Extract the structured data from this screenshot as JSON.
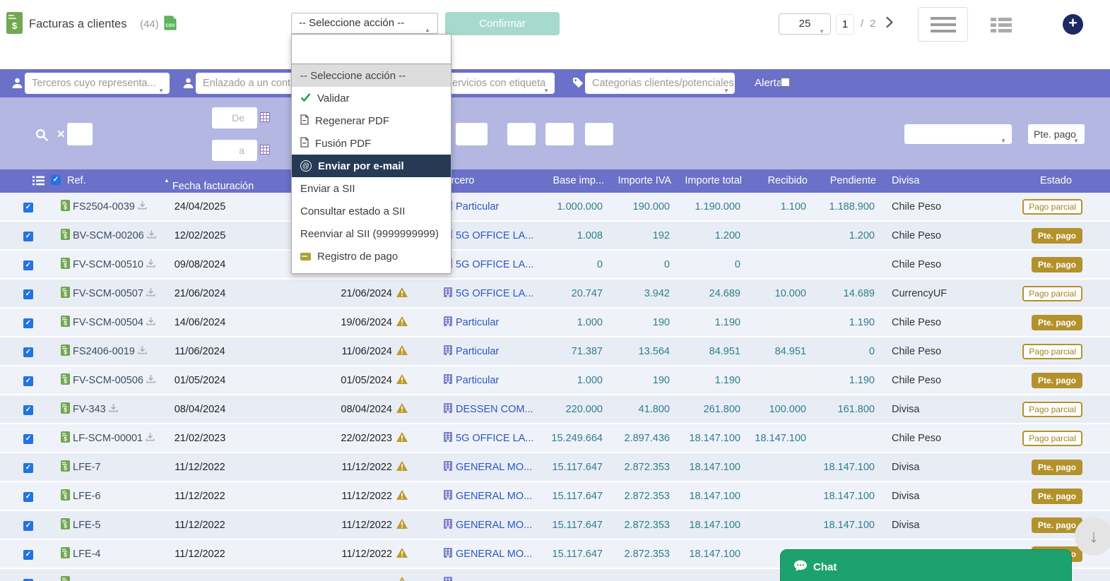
{
  "topbar": {
    "title": "Facturas a clientes",
    "count": "(44)",
    "action_select_value": "-- Seleccione acción --",
    "confirm_label": "Confirmar",
    "page_size": "25",
    "page_current": "1",
    "page_sep": "/",
    "page_total": "2"
  },
  "action_menu": {
    "items": [
      {
        "label": "-- Seleccione acción --",
        "icon": "none",
        "state": "selected"
      },
      {
        "label": "Validar",
        "icon": "check",
        "state": "normal"
      },
      {
        "label": "Regenerar PDF",
        "icon": "pdf",
        "state": "normal"
      },
      {
        "label": "Fusión PDF",
        "icon": "pdf",
        "state": "normal"
      },
      {
        "label": "Enviar por e-mail",
        "icon": "at",
        "state": "highlighted"
      },
      {
        "label": "Enviar a SII",
        "icon": "none",
        "state": "normal"
      },
      {
        "label": "Consultar estado a SII",
        "icon": "none",
        "state": "normal"
      },
      {
        "label": "Reenviar al SII (9999999999)",
        "icon": "none",
        "state": "normal"
      },
      {
        "label": "Registro de pago",
        "icon": "payment",
        "state": "normal"
      }
    ]
  },
  "filterbar": {
    "filters": [
      {
        "icon": "user",
        "placeholder": "Terceros cuyo representa..."
      },
      {
        "icon": "user",
        "placeholder": "Enlazado a un conta"
      },
      {
        "icon": "none",
        "placeholder": "ervicios con etiqueta"
      },
      {
        "icon": "tag",
        "placeholder": "Categorias clientes/potenciales"
      }
    ],
    "alert_label": "Alerta",
    "alert_checked": false
  },
  "searchbar": {
    "date_from_placeholder": "De",
    "date_to_placeholder": "a",
    "status_select_value": "Pte. pago"
  },
  "table": {
    "columns": {
      "ref": "Ref.",
      "date1": "Fecha facturación",
      "tercero": "Tercero",
      "base": "Base imp...",
      "iva": "Importe IVA",
      "total": "Importe total",
      "recibido": "Recibido",
      "pendiente": "Pendiente",
      "divisa": "Divisa",
      "estado": "Estado"
    },
    "rows": [
      {
        "ref": "FS2504-0039",
        "ref_icon": true,
        "dl": true,
        "date1": "24/04/2025",
        "date2": "",
        "warn": false,
        "building": true,
        "tercero": "Particular",
        "base": "1.000.000",
        "iva": "190.000",
        "total": "1.190.000",
        "recibido": "1.100",
        "pendiente": "1.188.900",
        "divisa": "Chile Peso",
        "estado": "Pago parcial",
        "estado_style": "outline"
      },
      {
        "ref": "BV-SCM-00206",
        "ref_icon": true,
        "dl": true,
        "date1": "12/02/2025",
        "date2": "",
        "warn": false,
        "building": true,
        "tercero": "5G OFFICE LA...",
        "base": "1.008",
        "iva": "192",
        "total": "1.200",
        "recibido": "",
        "pendiente": "1.200",
        "divisa": "Chile Peso",
        "estado": "Pte. pago",
        "estado_style": "solid"
      },
      {
        "ref": "FV-SCM-00510",
        "ref_icon": true,
        "dl": true,
        "date1": "09/08/2024",
        "date2": "",
        "warn": false,
        "building": true,
        "tercero": "5G OFFICE LA...",
        "base": "0",
        "iva": "0",
        "total": "0",
        "recibido": "",
        "pendiente": "",
        "divisa": "Chile Peso",
        "estado": "Pte. pago",
        "estado_style": "solid"
      },
      {
        "ref": "FV-SCM-00507",
        "ref_icon": true,
        "dl": true,
        "date1": "21/06/2024",
        "date2": "21/06/2024",
        "warn": true,
        "building": true,
        "tercero": "5G OFFICE LA...",
        "base": "20.747",
        "iva": "3.942",
        "total": "24.689",
        "recibido": "10.000",
        "pendiente": "14.689",
        "divisa": "CurrencyUF",
        "estado": "Pago parcial",
        "estado_style": "outline"
      },
      {
        "ref": "FV-SCM-00504",
        "ref_icon": true,
        "dl": true,
        "date1": "14/06/2024",
        "date2": "19/06/2024",
        "warn": true,
        "building": true,
        "tercero": "Particular",
        "base": "1.000",
        "iva": "190",
        "total": "1.190",
        "recibido": "",
        "pendiente": "1.190",
        "divisa": "Chile Peso",
        "estado": "Pte. pago",
        "estado_style": "solid"
      },
      {
        "ref": "FS2406-0019",
        "ref_icon": true,
        "dl": true,
        "date1": "11/06/2024",
        "date2": "11/06/2024",
        "warn": true,
        "building": true,
        "tercero": "Particular",
        "base": "71.387",
        "iva": "13.564",
        "total": "84.951",
        "recibido": "84.951",
        "pendiente": "0",
        "divisa": "Chile Peso",
        "estado": "Pago parcial",
        "estado_style": "outline"
      },
      {
        "ref": "FV-SCM-00506",
        "ref_icon": true,
        "dl": true,
        "date1": "01/05/2024",
        "date2": "01/05/2024",
        "warn": true,
        "building": true,
        "tercero": "Particular",
        "base": "1.000",
        "iva": "190",
        "total": "1.190",
        "recibido": "",
        "pendiente": "1.190",
        "divisa": "Chile Peso",
        "estado": "Pte. pago",
        "estado_style": "solid"
      },
      {
        "ref": "FV-343",
        "ref_icon": true,
        "dl": true,
        "date1": "08/04/2024",
        "date2": "08/04/2024",
        "warn": true,
        "building": true,
        "tercero": "DESSEN COM...",
        "base": "220.000",
        "iva": "41.800",
        "total": "261.800",
        "recibido": "100.000",
        "pendiente": "161.800",
        "divisa": "Divisa",
        "estado": "Pago parcial",
        "estado_style": "outline"
      },
      {
        "ref": "LF-SCM-00001",
        "ref_icon": true,
        "dl": true,
        "date1": "21/02/2023",
        "date2": "22/02/2023",
        "warn": true,
        "building": true,
        "tercero": "5G OFFICE LA...",
        "base": "15.249.664",
        "iva": "2.897.436",
        "total": "18.147.100",
        "recibido": "18.147.100",
        "pendiente": "",
        "divisa": "Chile Peso",
        "estado": "Pago parcial",
        "estado_style": "outline"
      },
      {
        "ref": "LFE-7",
        "ref_icon": true,
        "dl": false,
        "date1": "11/12/2022",
        "date2": "11/12/2022",
        "warn": true,
        "building": true,
        "tercero": "GENERAL MO...",
        "base": "15.117.647",
        "iva": "2.872.353",
        "total": "18.147.100",
        "recibido": "",
        "pendiente": "18.147.100",
        "divisa": "Divisa",
        "estado": "Pte. pago",
        "estado_style": "solid"
      },
      {
        "ref": "LFE-6",
        "ref_icon": true,
        "dl": false,
        "date1": "11/12/2022",
        "date2": "11/12/2022",
        "warn": true,
        "building": true,
        "tercero": "GENERAL MO...",
        "base": "15.117.647",
        "iva": "2.872.353",
        "total": "18.147.100",
        "recibido": "",
        "pendiente": "18.147.100",
        "divisa": "Divisa",
        "estado": "Pte. pago",
        "estado_style": "solid"
      },
      {
        "ref": "LFE-5",
        "ref_icon": true,
        "dl": false,
        "date1": "11/12/2022",
        "date2": "11/12/2022",
        "warn": true,
        "building": true,
        "tercero": "GENERAL MO...",
        "base": "15.117.647",
        "iva": "2.872.353",
        "total": "18.147.100",
        "recibido": "",
        "pendiente": "18.147.100",
        "divisa": "Divisa",
        "estado": "Pte. pago",
        "estado_style": "solid"
      },
      {
        "ref": "LFE-4",
        "ref_icon": true,
        "dl": false,
        "date1": "11/12/2022",
        "date2": "11/12/2022",
        "warn": true,
        "building": true,
        "tercero": "GENERAL MO...",
        "base": "15.117.647",
        "iva": "2.872.353",
        "total": "18.147.100",
        "recibido": "",
        "pendiente": "",
        "divisa": "",
        "estado": "Pte. pago",
        "estado_style": "solid"
      },
      {
        "ref": "",
        "ref_icon": true,
        "dl": false,
        "date1": "",
        "date2": "",
        "warn": true,
        "building": true,
        "tercero": "",
        "base": "",
        "iva": "",
        "total": "",
        "recibido": "",
        "pendiente": "",
        "divisa": "",
        "estado": "",
        "estado_style": ""
      }
    ]
  },
  "chat": {
    "label": "Chat"
  },
  "colors": {
    "band_dark": "#6b71c8",
    "band_light": "#b3b7e2",
    "status_gold": "#b3922c",
    "amount_teal": "#2e7e8f",
    "menu_highlight": "#263a55",
    "chat_green": "#1da26d",
    "add_navy": "#1b2a63",
    "doc_green": "#73a751"
  }
}
